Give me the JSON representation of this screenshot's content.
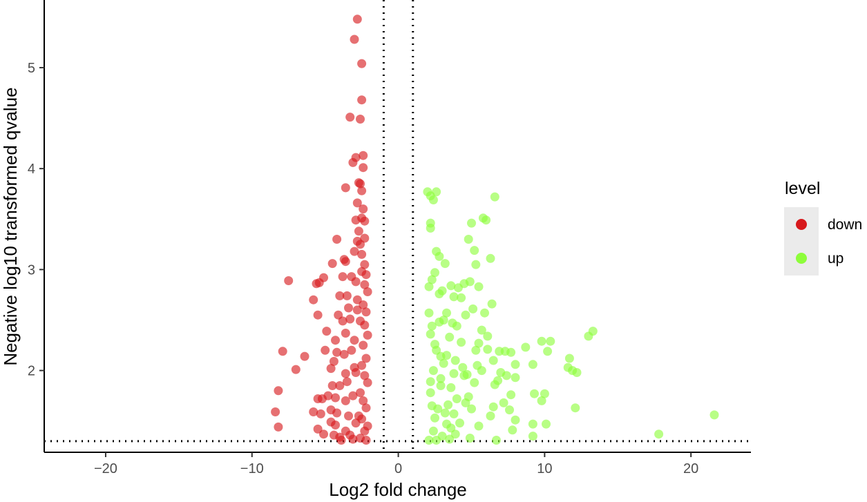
{
  "chart_data": {
    "type": "scatter",
    "title": "",
    "xlabel": "Log2 fold change",
    "ylabel": "Negative log10 transformed qvalue",
    "xlim": [
      -24.2,
      24.1
    ],
    "ylim": [
      1.19,
      5.67
    ],
    "x_ticks": [
      -20,
      -10,
      0,
      10,
      20
    ],
    "x_tick_labels": [
      "−20",
      "−10",
      "0",
      "10",
      "20"
    ],
    "y_ticks": [
      2,
      3,
      4,
      5
    ],
    "y_tick_labels": [
      "2",
      "3",
      "4",
      "5"
    ],
    "grid": false,
    "reference_lines": {
      "vertical": [
        -1,
        1
      ],
      "horizontal": [
        1.3
      ],
      "style": "dotted"
    },
    "legend": {
      "title": "level",
      "position": "right",
      "entries": [
        "down",
        "up"
      ]
    },
    "colors": {
      "down": "#d7191c",
      "up": "#8dfd3a"
    },
    "series": [
      {
        "name": "down",
        "color": "#d7191c",
        "points": [
          [
            -2.8,
            5.48
          ],
          [
            -3.0,
            5.28
          ],
          [
            -2.5,
            5.04
          ],
          [
            -2.5,
            4.68
          ],
          [
            -3.3,
            4.51
          ],
          [
            -2.6,
            4.49
          ],
          [
            -2.4,
            4.13
          ],
          [
            -2.9,
            4.11
          ],
          [
            -3.1,
            4.06
          ],
          [
            -2.4,
            4.01
          ],
          [
            -2.7,
            3.86
          ],
          [
            -2.6,
            3.85
          ],
          [
            -3.6,
            3.81
          ],
          [
            -2.5,
            3.78
          ],
          [
            -2.8,
            3.66
          ],
          [
            -2.4,
            3.6
          ],
          [
            -2.5,
            3.51
          ],
          [
            -2.9,
            3.49
          ],
          [
            -2.3,
            3.48
          ],
          [
            -2.7,
            3.38
          ],
          [
            -4.2,
            3.3
          ],
          [
            -2.3,
            3.31
          ],
          [
            -2.8,
            3.28
          ],
          [
            -2.6,
            3.25
          ],
          [
            -3.0,
            3.18
          ],
          [
            -2.5,
            3.15
          ],
          [
            -3.7,
            3.1
          ],
          [
            -3.6,
            3.08
          ],
          [
            -4.5,
            3.06
          ],
          [
            -2.3,
            3.05
          ],
          [
            -7.5,
            2.89
          ],
          [
            -5.6,
            2.86
          ],
          [
            -5.4,
            2.87
          ],
          [
            -5.1,
            2.92
          ],
          [
            -3.8,
            2.93
          ],
          [
            -3.2,
            2.93
          ],
          [
            -2.9,
            2.88
          ],
          [
            -4.0,
            2.74
          ],
          [
            -3.5,
            2.74
          ],
          [
            -5.8,
            2.7
          ],
          [
            -2.8,
            2.7
          ],
          [
            -4.1,
            2.55
          ],
          [
            -5.5,
            2.55
          ],
          [
            -3.3,
            2.51
          ],
          [
            -3.8,
            2.49
          ],
          [
            -2.6,
            2.49
          ],
          [
            -4.9,
            2.39
          ],
          [
            -3.6,
            2.37
          ],
          [
            -4.3,
            2.3
          ],
          [
            -3.0,
            2.3
          ],
          [
            -7.9,
            2.19
          ],
          [
            -5.0,
            2.2
          ],
          [
            -4.2,
            2.18
          ],
          [
            -6.4,
            2.14
          ],
          [
            -3.7,
            2.16
          ],
          [
            -4.4,
            2.09
          ],
          [
            -7.0,
            2.01
          ],
          [
            -4.6,
            2.02
          ],
          [
            -3.6,
            1.97
          ],
          [
            -3.0,
            2.03
          ],
          [
            -8.2,
            1.8
          ],
          [
            -4.5,
            1.85
          ],
          [
            -4.0,
            1.85
          ],
          [
            -3.5,
            1.89
          ],
          [
            -5.5,
            1.72
          ],
          [
            -5.2,
            1.72
          ],
          [
            -4.8,
            1.75
          ],
          [
            -4.3,
            1.73
          ],
          [
            -8.4,
            1.59
          ],
          [
            -5.8,
            1.59
          ],
          [
            -5.3,
            1.57
          ],
          [
            -4.6,
            1.61
          ],
          [
            -4.2,
            1.58
          ],
          [
            -8.2,
            1.44
          ],
          [
            -5.5,
            1.42
          ],
          [
            -5.1,
            1.37
          ],
          [
            -4.6,
            1.49
          ],
          [
            -4.3,
            1.46
          ],
          [
            -4.4,
            1.36
          ],
          [
            -4.0,
            1.34
          ],
          [
            -3.6,
            1.4
          ],
          [
            -3.3,
            1.36
          ],
          [
            -3.9,
            1.31
          ],
          [
            -3.1,
            1.32
          ],
          [
            -2.6,
            1.33
          ],
          [
            -2.2,
            1.31
          ],
          [
            -2.1,
            1.45
          ],
          [
            -2.3,
            1.4
          ],
          [
            -2.5,
            1.52
          ],
          [
            -2.7,
            1.55
          ],
          [
            -2.2,
            1.63
          ],
          [
            -2.4,
            1.7
          ],
          [
            -2.6,
            1.78
          ],
          [
            -2.1,
            1.88
          ],
          [
            -2.3,
            1.95
          ],
          [
            -2.5,
            2.05
          ],
          [
            -2.2,
            2.12
          ],
          [
            -2.4,
            2.25
          ],
          [
            -2.1,
            2.35
          ],
          [
            -2.3,
            2.45
          ],
          [
            -2.2,
            2.58
          ],
          [
            -2.4,
            2.65
          ],
          [
            -2.1,
            2.78
          ],
          [
            -2.3,
            2.85
          ],
          [
            -2.2,
            2.95
          ],
          [
            -2.5,
            2.98
          ],
          [
            -2.8,
            2.6
          ],
          [
            -3.2,
            2.2
          ],
          [
            -3.4,
            2.62
          ],
          [
            -2.9,
            1.98
          ],
          [
            -3.1,
            1.75
          ],
          [
            -3.4,
            1.55
          ],
          [
            -2.9,
            1.48
          ],
          [
            -3.6,
            1.7
          ]
        ]
      },
      {
        "name": "up",
        "color": "#8dfd3a",
        "points": [
          [
            2.0,
            3.77
          ],
          [
            2.6,
            3.77
          ],
          [
            2.2,
            3.73
          ],
          [
            2.4,
            3.69
          ],
          [
            6.6,
            3.72
          ],
          [
            5.8,
            3.51
          ],
          [
            6.0,
            3.49
          ],
          [
            5.0,
            3.46
          ],
          [
            2.2,
            3.46
          ],
          [
            2.2,
            3.41
          ],
          [
            4.8,
            3.3
          ],
          [
            2.6,
            3.18
          ],
          [
            5.2,
            3.19
          ],
          [
            2.8,
            3.13
          ],
          [
            6.3,
            3.11
          ],
          [
            3.2,
            3.06
          ],
          [
            5.3,
            3.05
          ],
          [
            2.5,
            2.97
          ],
          [
            2.3,
            2.9
          ],
          [
            4.9,
            2.88
          ],
          [
            4.5,
            2.86
          ],
          [
            5.5,
            2.83
          ],
          [
            3.6,
            2.84
          ],
          [
            2.1,
            2.83
          ],
          [
            4.1,
            2.82
          ],
          [
            3.0,
            2.79
          ],
          [
            2.8,
            2.76
          ],
          [
            4.3,
            2.72
          ],
          [
            3.8,
            2.73
          ],
          [
            6.4,
            2.66
          ],
          [
            5.1,
            2.61
          ],
          [
            5.9,
            2.57
          ],
          [
            3.3,
            2.57
          ],
          [
            2.1,
            2.57
          ],
          [
            4.6,
            2.55
          ],
          [
            3.1,
            2.5
          ],
          [
            5.7,
            2.4
          ],
          [
            6.1,
            2.34
          ],
          [
            4.0,
            2.44
          ],
          [
            3.7,
            2.47
          ],
          [
            2.3,
            2.44
          ],
          [
            13.3,
            2.39
          ],
          [
            13.0,
            2.34
          ],
          [
            9.8,
            2.29
          ],
          [
            10.4,
            2.29
          ],
          [
            5.5,
            2.27
          ],
          [
            8.7,
            2.23
          ],
          [
            5.3,
            2.2
          ],
          [
            6.1,
            2.21
          ],
          [
            6.9,
            2.19
          ],
          [
            7.7,
            2.18
          ],
          [
            7.3,
            2.19
          ],
          [
            10.2,
            2.19
          ],
          [
            3.3,
            2.15
          ],
          [
            2.9,
            2.14
          ],
          [
            11.7,
            2.12
          ],
          [
            6.5,
            2.1
          ],
          [
            8.0,
            2.06
          ],
          [
            9.2,
            2.06
          ],
          [
            5.4,
            2.05
          ],
          [
            11.6,
            2.03
          ],
          [
            11.9,
            2.0
          ],
          [
            12.2,
            1.98
          ],
          [
            5.7,
            2.0
          ],
          [
            7.0,
            1.98
          ],
          [
            3.8,
            1.97
          ],
          [
            4.7,
            1.96
          ],
          [
            8.0,
            1.93
          ],
          [
            7.4,
            1.95
          ],
          [
            6.8,
            1.9
          ],
          [
            2.2,
            1.89
          ],
          [
            5.2,
            1.88
          ],
          [
            6.6,
            1.86
          ],
          [
            2.9,
            1.85
          ],
          [
            10.0,
            1.77
          ],
          [
            9.3,
            1.77
          ],
          [
            7.7,
            1.76
          ],
          [
            4.8,
            1.74
          ],
          [
            9.8,
            1.7
          ],
          [
            4.6,
            1.68
          ],
          [
            7.2,
            1.68
          ],
          [
            3.4,
            1.66
          ],
          [
            6.5,
            1.64
          ],
          [
            12.1,
            1.63
          ],
          [
            7.6,
            1.61
          ],
          [
            3.2,
            1.58
          ],
          [
            21.6,
            1.56
          ],
          [
            6.3,
            1.55
          ],
          [
            2.5,
            1.53
          ],
          [
            8.0,
            1.51
          ],
          [
            9.2,
            1.47
          ],
          [
            10.1,
            1.47
          ],
          [
            5.5,
            1.45
          ],
          [
            3.6,
            1.43
          ],
          [
            7.8,
            1.41
          ],
          [
            2.4,
            1.4
          ],
          [
            17.8,
            1.37
          ],
          [
            9.2,
            1.35
          ],
          [
            3.0,
            1.35
          ],
          [
            4.9,
            1.33
          ],
          [
            6.7,
            1.31
          ],
          [
            2.6,
            1.31
          ],
          [
            3.5,
            1.32
          ],
          [
            2.1,
            1.31
          ],
          [
            3.9,
            1.37
          ],
          [
            4.2,
            1.48
          ],
          [
            2.7,
            1.62
          ],
          [
            4.0,
            1.72
          ],
          [
            2.2,
            1.78
          ],
          [
            3.6,
            1.83
          ],
          [
            2.4,
            2.0
          ],
          [
            3.1,
            2.07
          ],
          [
            2.6,
            2.2
          ],
          [
            4.3,
            2.28
          ],
          [
            3.5,
            2.33
          ],
          [
            2.2,
            2.36
          ],
          [
            2.8,
            2.48
          ],
          [
            4.4,
            2.03
          ],
          [
            3.8,
            1.57
          ],
          [
            2.3,
            1.65
          ],
          [
            4.5,
            1.95
          ],
          [
            3.3,
            1.47
          ],
          [
            2.9,
            1.92
          ],
          [
            3.9,
            2.1
          ],
          [
            2.5,
            2.26
          ],
          [
            5.0,
            1.62
          ]
        ]
      }
    ]
  }
}
